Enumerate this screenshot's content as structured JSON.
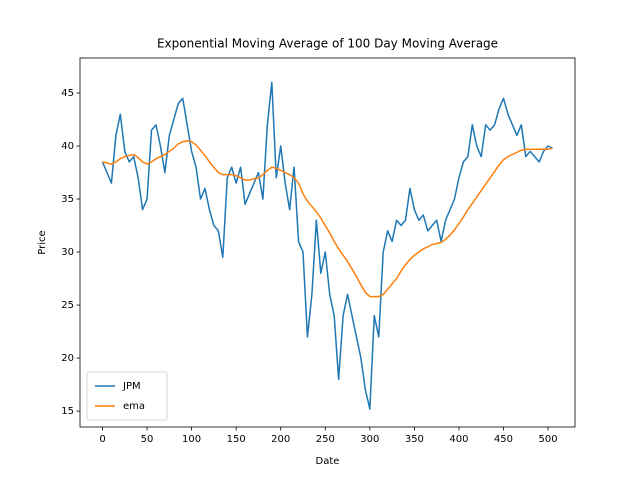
{
  "chart_data": {
    "type": "line",
    "title": "Exponential Moving Average of 100 Day Moving Average",
    "x_label": "Date",
    "y_label": "Price",
    "x": [
      0,
      5,
      10,
      15,
      20,
      25,
      30,
      35,
      40,
      45,
      50,
      55,
      60,
      65,
      70,
      75,
      80,
      85,
      90,
      95,
      100,
      105,
      110,
      115,
      120,
      125,
      130,
      135,
      140,
      145,
      150,
      155,
      160,
      165,
      170,
      175,
      180,
      185,
      190,
      195,
      200,
      205,
      210,
      215,
      220,
      225,
      230,
      235,
      240,
      245,
      250,
      255,
      260,
      265,
      270,
      275,
      280,
      285,
      290,
      295,
      300,
      305,
      310,
      315,
      320,
      325,
      330,
      335,
      340,
      345,
      350,
      355,
      360,
      365,
      370,
      375,
      380,
      385,
      390,
      395,
      400,
      405,
      410,
      415,
      420,
      425,
      430,
      435,
      440,
      445,
      450,
      455,
      460,
      465,
      470,
      475,
      480,
      485,
      490,
      495,
      500,
      505
    ],
    "series": [
      {
        "name": "JPM",
        "color": "#1f77b4",
        "values": [
          38.5,
          37.5,
          36.5,
          41,
          43,
          39.5,
          38.5,
          39,
          37,
          34,
          35,
          41.5,
          42,
          40,
          37.5,
          41,
          42.5,
          44,
          44.5,
          42,
          39.5,
          38,
          35,
          36,
          34,
          32.5,
          32,
          29.5,
          37,
          38,
          36.5,
          38,
          34.5,
          35.5,
          36.5,
          37.5,
          35,
          42,
          46,
          37,
          40,
          36.5,
          34,
          38,
          31,
          30,
          22,
          26,
          33,
          28,
          30,
          26,
          24,
          18,
          24,
          26,
          24,
          22,
          20,
          17,
          15.2,
          24,
          22,
          30,
          32,
          31,
          33,
          32.5,
          33,
          36,
          34,
          33,
          33.5,
          32,
          32.5,
          33,
          31,
          33,
          34,
          35,
          37,
          38.5,
          39,
          42,
          40,
          39,
          42,
          41.5,
          42,
          43.5,
          44.5,
          43,
          42,
          41,
          42,
          39,
          39.5,
          39,
          38.5,
          39.5,
          40,
          39.8
        ]
      },
      {
        "name": "ema",
        "color": "#ff7f0e",
        "values": [
          38.5,
          38.4,
          38.3,
          38.5,
          38.8,
          39,
          39.1,
          39.2,
          38.9,
          38.5,
          38.3,
          38.5,
          38.8,
          39,
          39.2,
          39.5,
          39.8,
          40.2,
          40.4,
          40.5,
          40.4,
          40.1,
          39.6,
          39.1,
          38.5,
          38,
          37.5,
          37.3,
          37.3,
          37.3,
          37.2,
          37,
          36.8,
          36.8,
          36.9,
          37,
          37.3,
          37.7,
          38,
          37.9,
          37.7,
          37.5,
          37.3,
          37,
          36.5,
          35.5,
          34.8,
          34.3,
          33.8,
          33.2,
          32.5,
          31.8,
          31,
          30.3,
          29.7,
          29.1,
          28.4,
          27.7,
          26.9,
          26.2,
          25.8,
          25.8,
          25.8,
          26,
          26.5,
          27,
          27.5,
          28.2,
          28.8,
          29.3,
          29.7,
          30,
          30.3,
          30.5,
          30.7,
          30.8,
          30.9,
          31.2,
          31.6,
          32.1,
          32.7,
          33.3,
          34,
          34.6,
          35.2,
          35.8,
          36.4,
          37,
          37.6,
          38.2,
          38.7,
          39,
          39.2,
          39.4,
          39.6,
          39.7,
          39.7,
          39.7,
          39.7,
          39.7,
          39.7,
          39.8
        ]
      }
    ],
    "xlim": [
      -25.25,
      530.25
    ],
    "xticks": [
      0,
      50,
      100,
      150,
      200,
      250,
      300,
      350,
      400,
      450,
      500
    ],
    "ylim": [
      13.5,
      48.3
    ],
    "yticks": [
      15,
      20,
      25,
      30,
      35,
      40,
      45
    ],
    "legend": "lower left"
  }
}
